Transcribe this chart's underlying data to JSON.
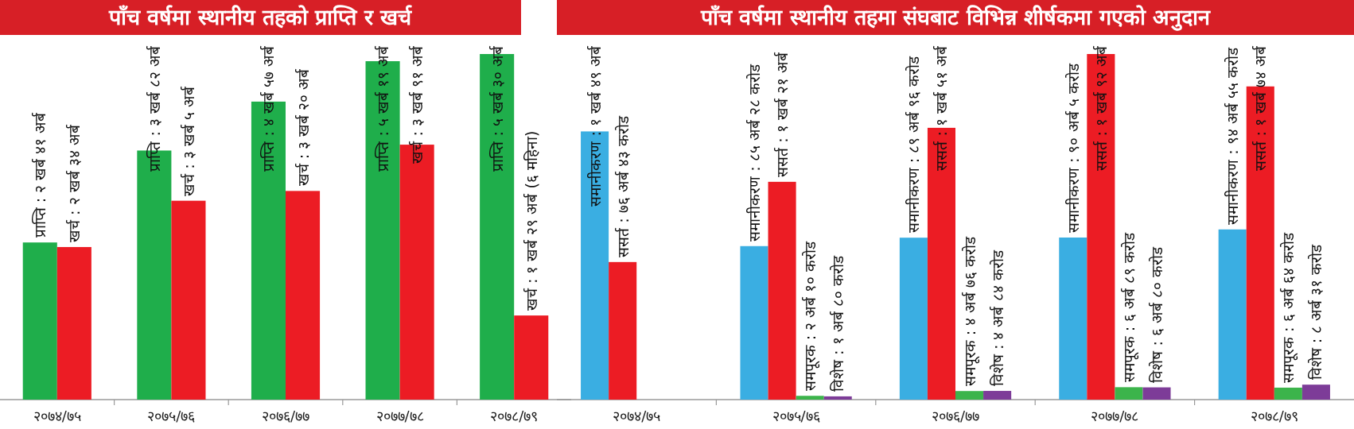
{
  "chart_data": [
    {
      "type": "bar",
      "title": "पाँच वर्षमा स्थानीय तहको प्राप्ति र खर्च",
      "categories": [
        "२०७४/७५",
        "२०७५/७६",
        "२०७६/७७",
        "२०७७/७८",
        "२०७८/७९"
      ],
      "series": [
        {
          "color": "#1fae4b",
          "values": [
            2.41,
            3.82,
            4.57,
            5.19,
            5.3
          ],
          "value_labels": [
            "प्राप्ति : २ खर्ब ४१ अर्ब",
            "प्राप्ति : ३ खर्ब ८२ अर्ब",
            "प्राप्ति : ४ खर्ब ५७ अर्ब",
            "प्राप्ति : ५ खर्ब १९ अर्ब",
            "प्राप्ति : ५ खर्ब ३० अर्ब"
          ]
        },
        {
          "color": "#ec1c24",
          "values": [
            2.34,
            3.05,
            3.2,
            3.91,
            1.29
          ],
          "value_labels": [
            "खर्च : २ खर्ब ३४ अर्ब",
            "खर्च : ३ खर्ब ५ अर्ब",
            "खर्च : ३ खर्ब २० अर्ब",
            "खर्च : ३ खर्ब ९१ अर्ब",
            "खर्च : १ खर्ब २९ अर्ब (६ महिना)"
          ]
        }
      ]
    },
    {
      "type": "bar",
      "title": "पाँच वर्षमा स्थानीय तहमा संघबाट विभिन्न शीर्षकमा गएको अनुदान",
      "categories": [
        "२०७४/७५",
        "२०७५/७६",
        "२०७६/७७",
        "२०७७/७८",
        "२०७८/७९"
      ],
      "series": [
        {
          "color": "#3aaee2",
          "values": [
            149,
            85.28,
            89.96,
            90.05,
            94.55
          ],
          "value_labels": [
            "समानीकरण : १ खर्ब ४९ अर्ब",
            "समानीकरण : ८५ अर्ब २८ करोड",
            "समानीकरण : ८९ अर्ब ९६ करोड",
            "समानीकरण : ९० अर्ब ५ करोड",
            "समानीकरण : ९४ अर्ब ५५ करोड"
          ]
        },
        {
          "color": "#ec1c24",
          "values": [
            76.43,
            121,
            151,
            192,
            174
          ],
          "value_labels": [
            "ससर्त : ७६ अर्ब ४३ करोड",
            "ससर्त : १ खर्ब २१ अर्ब",
            "ससर्त : १ खर्ब ५१ अर्ब",
            "ससर्त : १ खर्ब ९२ अर्ब",
            "ससर्त : १ खर्ब ७४ अर्ब"
          ]
        },
        {
          "color": "#3cb44b",
          "values": [
            null,
            2.1,
            4.76,
            6.89,
            6.64
          ],
          "value_labels": [
            null,
            "समपूरक : २ अर्ब १० करोड",
            "समपूरक : ४ अर्ब ७६ करोड",
            "समपूरक : ६ अर्ब ८९ करोड",
            "समपूरक : ६ अर्ब ६४ करोड"
          ]
        },
        {
          "color": "#7d3c98",
          "values": [
            null,
            1.8,
            4.84,
            6.8,
            8.31
          ],
          "value_labels": [
            null,
            "विशेष : १ अर्ब ८० करोड",
            "विशेष : ४ अर्ब ८४ करोड",
            "विशेष : ६ अर्ब ८० करोड",
            "विशेष : ८ अर्ब ३१ करोड"
          ]
        }
      ]
    }
  ]
}
